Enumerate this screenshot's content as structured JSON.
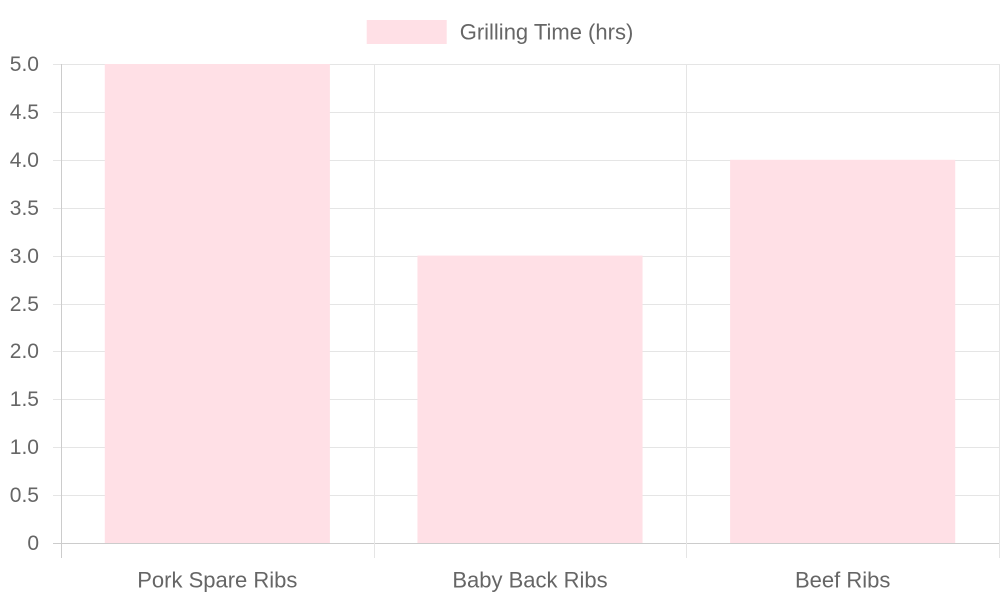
{
  "chart_data": {
    "type": "bar",
    "categories": [
      "Pork Spare Ribs",
      "Baby Back Ribs",
      "Beef Ribs"
    ],
    "series": [
      {
        "name": "Grilling Time (hrs)",
        "values": [
          5,
          3,
          4
        ],
        "color": "#ffe0e6"
      }
    ],
    "ylim": [
      0,
      5
    ],
    "yticks": [
      "0",
      "0.5",
      "1.0",
      "1.5",
      "2.0",
      "2.5",
      "3.0",
      "3.5",
      "4.0",
      "4.5",
      "5.0"
    ],
    "ytick_values": [
      0,
      0.5,
      1.0,
      1.5,
      2.0,
      2.5,
      3.0,
      3.5,
      4.0,
      4.5,
      5.0
    ],
    "grid": true,
    "legend_position": "top-center",
    "colors": {
      "grid": "#e5e5e5",
      "axis": "#cccccc",
      "text": "#666666"
    }
  }
}
